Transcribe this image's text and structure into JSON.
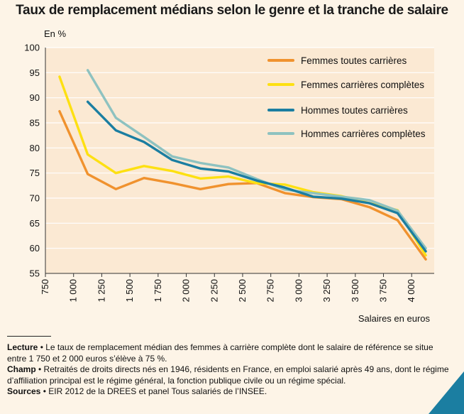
{
  "title": "Taux de remplacement médians selon le genre et la tranche de salaire",
  "chart_data": {
    "type": "line",
    "title": "Taux de remplacement médians selon le genre et la tranche de salaire",
    "ylabel": "En %",
    "xlabel": "Salaires en euros",
    "ylim": [
      55,
      100
    ],
    "xlim": [
      750,
      4200
    ],
    "yticks": [
      55,
      60,
      65,
      70,
      75,
      80,
      85,
      90,
      95,
      100
    ],
    "xticks": [
      750,
      1000,
      1250,
      1500,
      1750,
      2000,
      2250,
      2500,
      2750,
      3000,
      3250,
      3500,
      3750,
      4000
    ],
    "xtick_labels": [
      "750",
      "1 000",
      "1 250",
      "1 500",
      "1 750",
      "2 000",
      "2 250",
      "2 500",
      "2 750",
      "3 000",
      "3 250",
      "3 500",
      "3 750",
      "4 000"
    ],
    "grid": "horizontal",
    "legend_position": "top-right",
    "series": [
      {
        "name": "Femmes toutes carrières",
        "color": "#f0922e",
        "x": [
          875,
          1125,
          1375,
          1625,
          1875,
          2125,
          2375,
          2625,
          2875,
          3125,
          3375,
          3625,
          3875,
          4125
        ],
        "values": [
          87.3,
          74.8,
          71.8,
          74.0,
          73.0,
          71.8,
          72.8,
          73.0,
          71.0,
          70.2,
          69.8,
          68.2,
          65.6,
          57.8
        ]
      },
      {
        "name": "Femmes carrières complètes",
        "color": "#fde012",
        "x": [
          875,
          1125,
          1375,
          1625,
          1875,
          2125,
          2375,
          2625,
          2875,
          3125,
          3375,
          3625,
          3875,
          4125
        ],
        "values": [
          94.2,
          78.7,
          75.0,
          76.4,
          75.4,
          73.9,
          74.3,
          73.0,
          72.7,
          71.2,
          70.4,
          69.0,
          67.6,
          58.6
        ]
      },
      {
        "name": "Hommes toutes carrières",
        "color": "#1b7ea1",
        "x": [
          1125,
          1375,
          1625,
          1875,
          2125,
          2375,
          2625,
          2875,
          3125,
          3375,
          3625,
          3875,
          4125
        ],
        "values": [
          89.2,
          83.5,
          81.2,
          77.6,
          75.9,
          75.3,
          73.5,
          72.1,
          70.3,
          69.9,
          69.0,
          67.0,
          59.4
        ]
      },
      {
        "name": "Hommes carrières complètes",
        "color": "#8ec2c0",
        "x": [
          1125,
          1375,
          1625,
          1875,
          2125,
          2375,
          2625,
          2875,
          3125,
          3375,
          3625,
          3875,
          4125
        ],
        "values": [
          95.5,
          86.0,
          82.2,
          78.3,
          77.0,
          76.1,
          73.8,
          71.7,
          71.0,
          70.3,
          69.6,
          67.5,
          60.0
        ]
      }
    ]
  },
  "notes": {
    "lecture_label": "Lecture",
    "lecture_text": " • Le taux de remplacement médian des femmes à carrière complète dont le salaire de référence se situe entre 1 750 et 2 000 euros s’élève à 75 %.",
    "champ_label": "Champ",
    "champ_text": " • Retraités de droits directs nés en 1946, résidents en France, en emploi salarié après 49 ans, dont le régime d’affiliation principal est le régime général, la fonction publique civile ou un régime spécial.",
    "sources_label": "Sources",
    "sources_text": " • EIR 2012 de la DREES et panel Tous salariés de l’INSEE."
  },
  "colors": {
    "background": "#fdf4e7",
    "gridline": "#ffffff",
    "axis": "#333333",
    "corner_accent": "#1b7ea1"
  }
}
